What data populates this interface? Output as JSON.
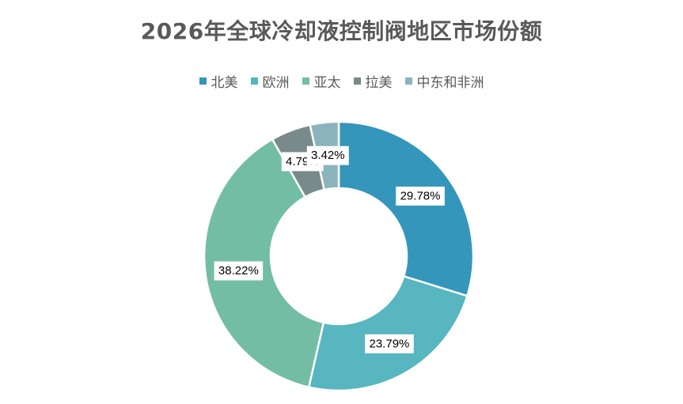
{
  "chart_data": {
    "type": "pie",
    "subtype": "donut",
    "title": "2026年全球冷却液控制阀地区市场份额",
    "legend_position": "top",
    "series": [
      {
        "name": "北美",
        "value": 29.78,
        "label": "29.78%",
        "color": "#3496BA"
      },
      {
        "name": "欧洲",
        "value": 23.79,
        "label": "23.79%",
        "color": "#57B6C0"
      },
      {
        "name": "亚太",
        "value": 38.22,
        "label": "38.22%",
        "color": "#74BDA5"
      },
      {
        "name": "拉美",
        "value": 4.79,
        "label": "4.79%",
        "color": "#788A89"
      },
      {
        "name": "中东和非洲",
        "value": 3.42,
        "label": "3.42%",
        "color": "#8BB3BC"
      }
    ]
  }
}
